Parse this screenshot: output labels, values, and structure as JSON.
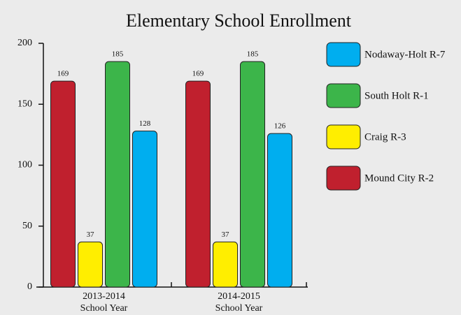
{
  "chart_data": {
    "type": "bar",
    "title": "Elementary School Enrollment",
    "categories": [
      [
        "2013-2014",
        "School Year"
      ],
      [
        "2014-2015",
        "School Year"
      ]
    ],
    "series": [
      {
        "name": "Mound City R-2",
        "color": "#c0202e",
        "values": [
          169,
          169
        ]
      },
      {
        "name": "Craig R-3",
        "color": "#ffee00",
        "values": [
          37,
          37
        ]
      },
      {
        "name": "South Holt R-1",
        "color": "#3cb54a",
        "values": [
          185,
          185
        ]
      },
      {
        "name": "Nodaway-Holt R-7",
        "color": "#00aeef",
        "values": [
          128,
          126
        ]
      }
    ],
    "ylim": [
      0,
      200
    ],
    "yticks": [
      0,
      50,
      100,
      150,
      200
    ],
    "legend": "right"
  }
}
